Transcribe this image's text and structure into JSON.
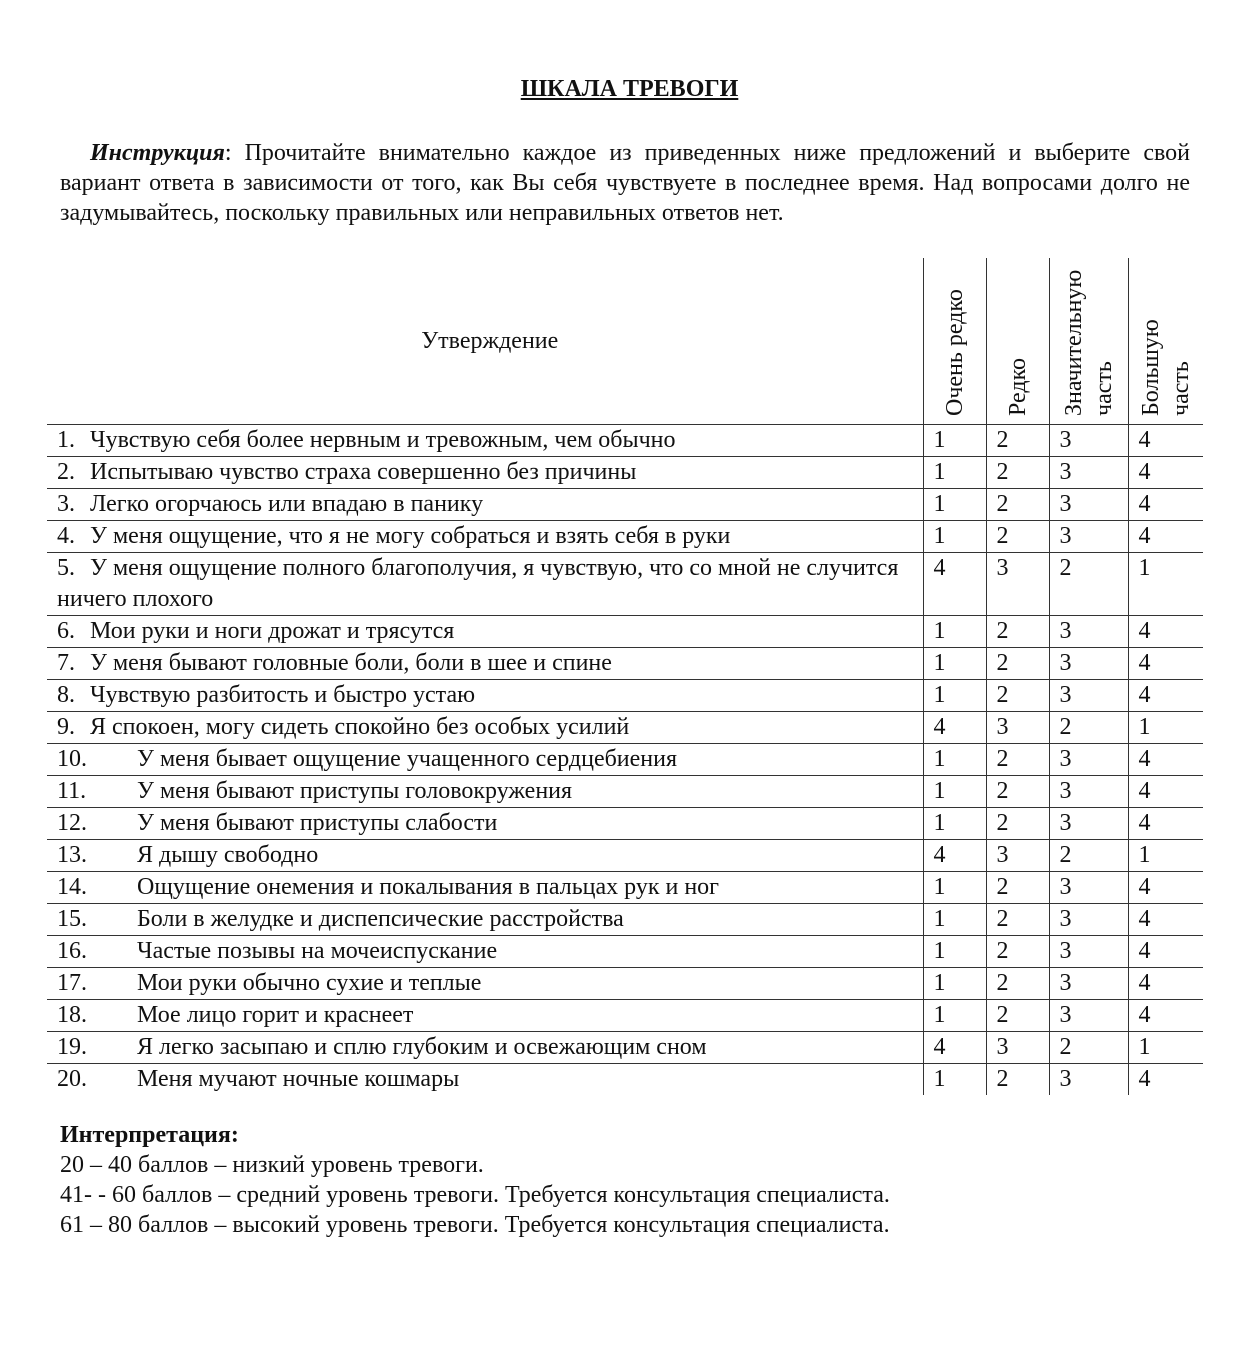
{
  "title": "ШКАЛА ТРЕВОГИ",
  "instruction": {
    "label": "Инструкция",
    "text": ": Прочитайте внимательно каждое из приведенных ниже предложений и выберите свой вариант ответа в зависимости от того, как Вы себя чувствуете в последнее время. Над вопросами долго не задумывайтесь, поскольку правильных или неправильных ответов нет."
  },
  "table": {
    "header": [
      "Утверждение",
      "Очень редко",
      "Редко",
      "Значительную часть",
      "Большую часть"
    ],
    "rows": [
      {
        "num": "1.",
        "text": "Чувствую себя более нервным и тревожным, чем обычно",
        "scores": [
          1,
          2,
          3,
          4
        ]
      },
      {
        "num": "2.",
        "text": "Испытываю чувство страха совершенно без причины",
        "scores": [
          1,
          2,
          3,
          4
        ]
      },
      {
        "num": "3.",
        "text": "Легко огорчаюсь или впадаю в панику",
        "scores": [
          1,
          2,
          3,
          4
        ]
      },
      {
        "num": "4.",
        "text": "У меня ощущение, что я не могу собраться и взять себя в руки",
        "scores": [
          1,
          2,
          3,
          4
        ]
      },
      {
        "num": "5.",
        "text": "У меня ощущение полного благополучия, я чувствую, что со мной не случится ничего плохого",
        "scores": [
          4,
          3,
          2,
          1
        ]
      },
      {
        "num": "6.",
        "text": "Мои руки и ноги дрожат и трясутся",
        "scores": [
          1,
          2,
          3,
          4
        ]
      },
      {
        "num": "7.",
        "text": "У меня бывают головные боли, боли в шее и спине",
        "scores": [
          1,
          2,
          3,
          4
        ]
      },
      {
        "num": "8.",
        "text": "Чувствую разбитость и быстро устаю",
        "scores": [
          1,
          2,
          3,
          4
        ]
      },
      {
        "num": "9.",
        "text": "Я спокоен, могу сидеть спокойно без особых усилий",
        "scores": [
          4,
          3,
          2,
          1
        ]
      },
      {
        "num": "10.",
        "text": "У меня бывает ощущение учащенного сердцебиения",
        "scores": [
          1,
          2,
          3,
          4
        ]
      },
      {
        "num": "11.",
        "text": "У меня бывают приступы головокружения",
        "scores": [
          1,
          2,
          3,
          4
        ]
      },
      {
        "num": "12.",
        "text": "У меня бывают приступы слабости",
        "scores": [
          1,
          2,
          3,
          4
        ]
      },
      {
        "num": "13.",
        "text": "Я дышу свободно",
        "scores": [
          4,
          3,
          2,
          1
        ]
      },
      {
        "num": "14.",
        "text": "Ощущение онемения и покалывания в пальцах рук и ног",
        "scores": [
          1,
          2,
          3,
          4
        ]
      },
      {
        "num": "15.",
        "text": "Боли в желудке и диспепсические расстройства",
        "scores": [
          1,
          2,
          3,
          4
        ]
      },
      {
        "num": "16.",
        "text": "Частые позывы на мочеиспускание",
        "scores": [
          1,
          2,
          3,
          4
        ]
      },
      {
        "num": "17.",
        "text": "Мои руки обычно сухие и теплые",
        "scores": [
          1,
          2,
          3,
          4
        ]
      },
      {
        "num": "18.",
        "text": "Мое лицо горит и краснеет",
        "scores": [
          1,
          2,
          3,
          4
        ]
      },
      {
        "num": "19.",
        "text": "Я легко засыпаю и сплю глубоким и освежающим сном",
        "scores": [
          4,
          3,
          2,
          1
        ]
      },
      {
        "num": "20.",
        "text": "Меня мучают ночные кошмары",
        "scores": [
          1,
          2,
          3,
          4
        ]
      }
    ]
  },
  "interpretation": {
    "title": "Интерпретация:",
    "lines": [
      "20 – 40 баллов – низкий уровень тревоги.",
      "41- - 60 баллов – средний уровень тревоги. Требуется консультация специалиста.",
      "61 – 80 баллов – высокий уровень тревоги. Требуется консультация специалиста."
    ]
  }
}
